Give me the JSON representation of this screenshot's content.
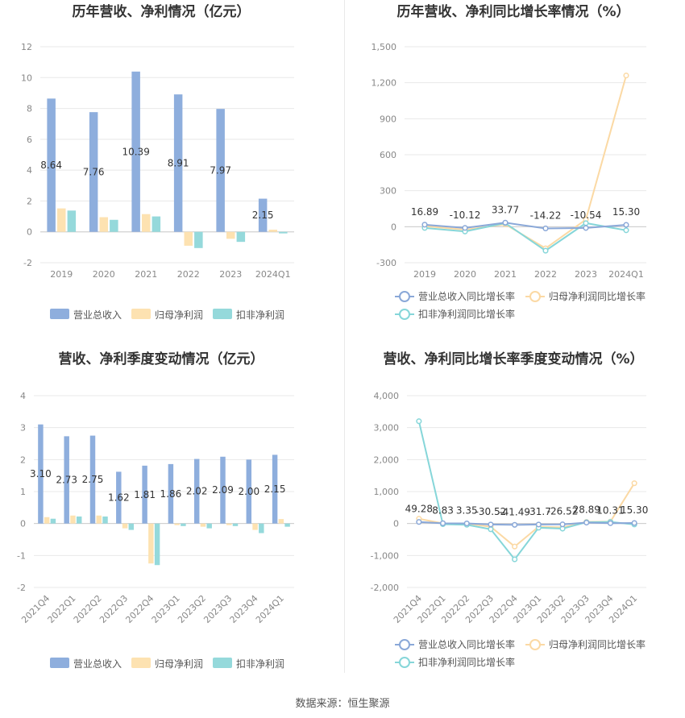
{
  "colors": {
    "revenue": "#8eaedd",
    "net_profit": "#fde2b1",
    "deducted_profit": "#95d9db",
    "revenue_line": "#8aa8d8",
    "net_profit_line": "#fbd9a4",
    "deducted_line": "#86d6d9",
    "grid": "#e8e8e8",
    "axis_text": "#888888",
    "title_text": "#333333"
  },
  "footer": {
    "label": "数据来源：",
    "source": "恒生聚源"
  },
  "chart_data": [
    {
      "id": "annual-amounts",
      "type": "bar",
      "title": "历年营收、净利情况（亿元）",
      "categories": [
        "2019",
        "2020",
        "2021",
        "2022",
        "2023",
        "2024Q1"
      ],
      "ylim": [
        -2,
        12
      ],
      "yticks": [
        -2,
        0,
        2,
        4,
        6,
        8,
        10,
        12
      ],
      "ytick_labels": [
        "-2",
        "0",
        "2",
        "4",
        "6",
        "8",
        "10",
        "12"
      ],
      "series": [
        {
          "name": "营业总收入",
          "values": [
            8.64,
            7.76,
            10.39,
            8.91,
            7.97,
            2.15
          ],
          "labels": [
            "8.64",
            "7.76",
            "10.39",
            "8.91",
            "7.97",
            "2.15"
          ]
        },
        {
          "name": "归母净利润",
          "values": [
            1.52,
            0.95,
            1.15,
            -0.9,
            -0.45,
            0.14
          ]
        },
        {
          "name": "扣非净利润",
          "values": [
            1.38,
            0.78,
            1.0,
            -1.05,
            -0.65,
            -0.1
          ]
        }
      ]
    },
    {
      "id": "annual-growth",
      "type": "line",
      "title": "历年营收、净利同比增长率情况（%）",
      "categories": [
        "2019",
        "2020",
        "2021",
        "2022",
        "2023",
        "2024Q1"
      ],
      "ylim": [
        -300,
        1500
      ],
      "yticks": [
        -300,
        0,
        300,
        600,
        900,
        1200,
        1500
      ],
      "ytick_labels": [
        "-300",
        "0",
        "300",
        "600",
        "900",
        "1,200",
        "1,500"
      ],
      "series": [
        {
          "name": "营业总收入同比增长率",
          "values": [
            16.89,
            -10.12,
            33.77,
            -14.22,
            -10.54,
            15.3
          ],
          "labels": [
            "16.89",
            "-10.12",
            "33.77",
            "-14.22",
            "-10.54",
            "15.30"
          ]
        },
        {
          "name": "归母净利润同比增长率",
          "values": [
            5,
            -25,
            20,
            -180,
            60,
            1260
          ]
        },
        {
          "name": "扣非净利润同比增长率",
          "values": [
            -10,
            -40,
            30,
            -200,
            30,
            -30
          ]
        }
      ]
    },
    {
      "id": "quarterly-amounts",
      "type": "bar",
      "title": "营收、净利季度变动情况（亿元）",
      "categories": [
        "2021Q4",
        "2022Q1",
        "2022Q2",
        "2022Q3",
        "2022Q4",
        "2023Q1",
        "2023Q2",
        "2023Q3",
        "2023Q4",
        "2024Q1"
      ],
      "ylim": [
        -2,
        4
      ],
      "yticks": [
        -2,
        -1,
        0,
        1,
        2,
        3,
        4
      ],
      "ytick_labels": [
        "-2",
        "-1",
        "0",
        "1",
        "2",
        "3",
        "4"
      ],
      "series": [
        {
          "name": "营业总收入",
          "values": [
            3.1,
            2.73,
            2.75,
            1.62,
            1.81,
            1.86,
            2.02,
            2.09,
            2.0,
            2.15
          ],
          "labels": [
            "3.10",
            "2.73",
            "2.75",
            "1.62",
            "1.81",
            "1.86",
            "2.02",
            "2.09",
            "2.00",
            "2.15"
          ]
        },
        {
          "name": "归母净利润",
          "values": [
            0.2,
            0.25,
            0.25,
            -0.15,
            -1.25,
            -0.05,
            -0.1,
            -0.05,
            -0.2,
            0.14
          ]
        },
        {
          "name": "扣非净利润",
          "values": [
            0.15,
            0.22,
            0.22,
            -0.2,
            -1.3,
            -0.08,
            -0.15,
            -0.08,
            -0.3,
            -0.1
          ]
        }
      ]
    },
    {
      "id": "quarterly-growth",
      "type": "line",
      "title": "营收、净利同比增长率季度变动情况（%）",
      "categories": [
        "2021Q4",
        "2022Q1",
        "2022Q2",
        "2022Q3",
        "2022Q4",
        "2023Q1",
        "2023Q2",
        "2023Q3",
        "2023Q4",
        "2024Q1"
      ],
      "ylim": [
        -2000,
        4000
      ],
      "yticks": [
        -2000,
        -1000,
        0,
        1000,
        2000,
        3000,
        4000
      ],
      "ytick_labels": [
        "-2,000",
        "-1,000",
        "0",
        "1,000",
        "2,000",
        "3,000",
        "4,000"
      ],
      "series": [
        {
          "name": "营业总收入同比增长率",
          "values": [
            49.28,
            8.83,
            3.35,
            -30.52,
            -41.49,
            -31.7,
            -26.52,
            28.89,
            10.31,
            15.3
          ],
          "labels": [
            "49.28",
            "8.83",
            "3.35",
            "-30.52",
            "-41.49",
            "-31.7",
            "-26.52",
            "28.89",
            "10.31",
            "15.30"
          ]
        },
        {
          "name": "归母净利润同比增长率",
          "values": [
            150,
            5,
            -10,
            -100,
            -720,
            -100,
            -120,
            50,
            60,
            1260
          ]
        },
        {
          "name": "扣非净利润同比增长率",
          "values": [
            3200,
            -20,
            -40,
            -180,
            -1120,
            -130,
            -160,
            40,
            50,
            -30
          ]
        }
      ]
    }
  ]
}
